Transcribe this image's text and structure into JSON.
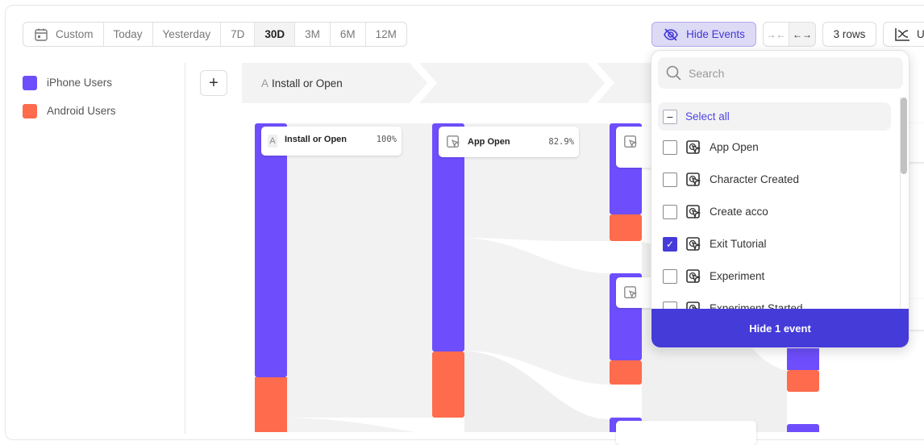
{
  "date_range": {
    "items": [
      "Custom",
      "Today",
      "Yesterday",
      "7D",
      "30D",
      "3M",
      "6M",
      "12M"
    ],
    "active": "30D"
  },
  "toolbar": {
    "hide_events": "Hide Events",
    "rows": "3 rows",
    "chart_type_partial": "U"
  },
  "legend": [
    {
      "label": "iPhone Users",
      "color": "#6e4efc"
    },
    {
      "label": "Android Users",
      "color": "#ff6b4d"
    }
  ],
  "flow": {
    "step_letter": "A",
    "step_title": "Install or Open",
    "nodes": [
      {
        "letter": "A",
        "label": "Install or Open",
        "pct": "100%",
        "iphone_share": 0.82
      },
      {
        "label": "App Open",
        "pct": "82.9%",
        "iphone_share": 0.78
      }
    ]
  },
  "dropdown": {
    "search_placeholder": "Search",
    "select_all": "Select all",
    "items": [
      {
        "label": "App Open",
        "checked": false
      },
      {
        "label": "Character Created",
        "checked": false
      },
      {
        "label": "Create acco",
        "checked": false
      },
      {
        "label": "Exit Tutorial",
        "checked": true
      },
      {
        "label": "Experiment",
        "checked": false
      },
      {
        "label": "Experiment Started",
        "checked": false
      }
    ],
    "action": "Hide 1 event"
  },
  "colors": {
    "iphone": "#6e4efc",
    "android": "#ff6b4d",
    "accent": "#453bd9"
  }
}
